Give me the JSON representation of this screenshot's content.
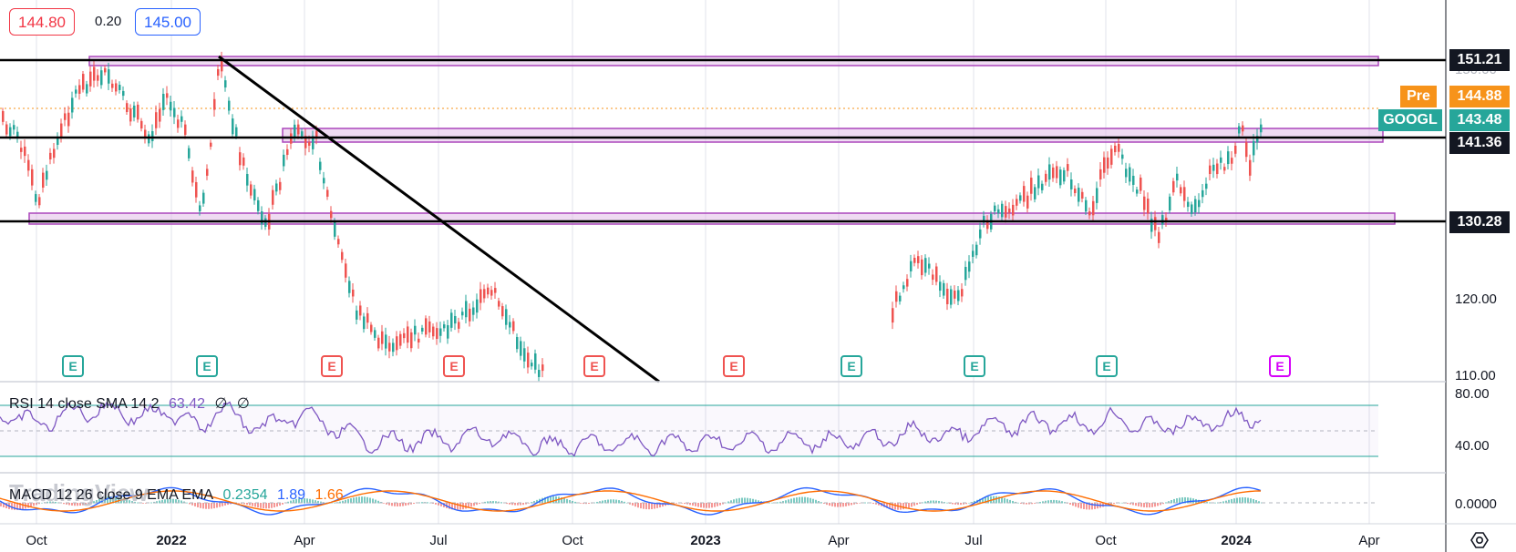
{
  "quote": {
    "bid": "144.80",
    "spread": "0.20",
    "ask": "145.00"
  },
  "price_tags": [
    {
      "label": "",
      "value": "151.21",
      "style": "black",
      "key": "level-151"
    },
    {
      "label": "Pre",
      "value": "144.88",
      "style": "orange",
      "key": "premarket"
    },
    {
      "label": "GOOGL",
      "value": "143.48",
      "style": "teal",
      "key": "last-price"
    },
    {
      "label": "",
      "value": "141.36",
      "style": "black",
      "key": "level-141"
    },
    {
      "label": "",
      "value": "130.28",
      "style": "black",
      "key": "level-130"
    }
  ],
  "price_axis": [
    "150.00",
    "120.00",
    "110.00"
  ],
  "rsi_axis": [
    "80.00",
    "40.00"
  ],
  "macd_axis": [
    "0.0000"
  ],
  "time_axis": [
    "Oct",
    "2022",
    "Apr",
    "Jul",
    "Oct",
    "2023",
    "Apr",
    "Jul",
    "Oct",
    "2024",
    "Apr"
  ],
  "rsi": {
    "title": "RSI 14 close SMA 14 2",
    "value": "63.42",
    "extra1": "∅",
    "extra2": "∅"
  },
  "macd": {
    "title": "MACD 12 26 close 9 EMA EMA",
    "hist": "0.2354",
    "macd": "1.89",
    "signal": "1.66"
  },
  "watermark": "TradingView",
  "earnings": [
    {
      "label": "E",
      "kind": "past-beat"
    },
    {
      "label": "E",
      "kind": "past-beat"
    },
    {
      "label": "E",
      "kind": "past-miss"
    },
    {
      "label": "E",
      "kind": "past-miss"
    },
    {
      "label": "E",
      "kind": "past-miss"
    },
    {
      "label": "E",
      "kind": "past-miss"
    },
    {
      "label": "E",
      "kind": "past-beat"
    },
    {
      "label": "E",
      "kind": "past-beat"
    },
    {
      "label": "E",
      "kind": "past-beat"
    },
    {
      "label": "E",
      "kind": "upcoming"
    }
  ],
  "colors": {
    "up": "#26a69a",
    "down": "#ef5350",
    "zone": "#e1bee7",
    "zone_border": "#ab47bc",
    "rsi_line": "#7e57c2",
    "macd_line": "#2962ff",
    "signal_line": "#ff6d00",
    "teal_tag": "#26a69a",
    "orange_tag": "#f7931a",
    "grid": "#e0e3eb",
    "bid": "#f23645",
    "ask": "#2962ff"
  },
  "chart_data": {
    "type": "candlestick",
    "symbol": "GOOGL",
    "price_ylim": [
      110,
      151.21
    ],
    "levels": [
      151.21,
      141.36,
      130.28
    ],
    "last": 143.48,
    "premarket": 144.88,
    "rsi_last": 63.42,
    "rsi_bands": [
      70,
      30
    ],
    "macd_last": {
      "hist": 0.2354,
      "macd": 1.89,
      "signal": 1.66
    }
  }
}
